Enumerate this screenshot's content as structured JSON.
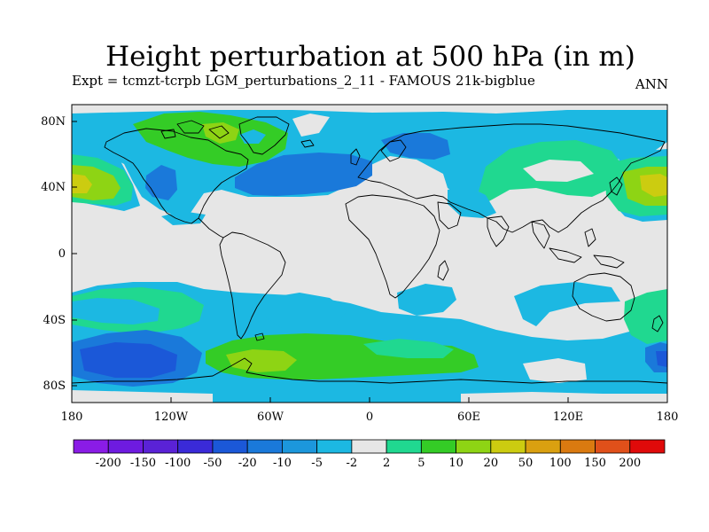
{
  "title": "Height perturbation at 500 hPa (in m)",
  "subtitle": "Expt = tcmzt-tcrpb   LGM_perturbations_2_11 - FAMOUS 21k-bigblue",
  "season_label": "ANN",
  "map": {
    "projection": "equirectangular",
    "lon_labels": [
      "180",
      "120W",
      "60W",
      "0",
      "60E",
      "120E",
      "180"
    ],
    "lat_labels": [
      "80N",
      "40N",
      "0",
      "40S",
      "80S"
    ],
    "background_color": "#e6e6e6",
    "coastline_color": "#000000"
  },
  "colorbar": {
    "labels": [
      "-200",
      "-150",
      "-100",
      "-50",
      "-20",
      "-10",
      "-5",
      "-2",
      "2",
      "5",
      "10",
      "20",
      "50",
      "100",
      "150",
      "200"
    ],
    "colors": [
      "#8a1ce6",
      "#6e1be0",
      "#5a22d6",
      "#3a2ad8",
      "#1b58d8",
      "#1a79da",
      "#1c97dc",
      "#1cb8e2",
      "#e6e6e6",
      "#20d890",
      "#34cc26",
      "#8ed414",
      "#cccc10",
      "#daa010",
      "#da7a10",
      "#e0501a",
      "#e00a0a"
    ]
  }
}
